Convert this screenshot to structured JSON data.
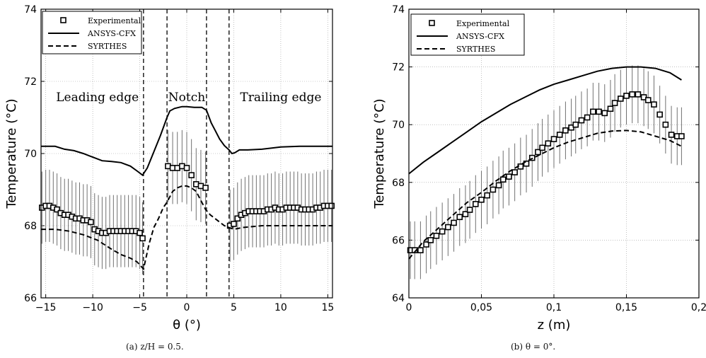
{
  "chart_data": [
    {
      "type": "line",
      "caption": "(a) z/H = 0.5.",
      "xlabel": "θ (°)",
      "ylabel": "Temperature (°C)",
      "xlim": [
        -15.5,
        15.5
      ],
      "ylim": [
        66,
        74
      ],
      "xticks": [
        -15,
        -10,
        -5,
        0,
        5,
        10,
        15
      ],
      "xtick_labels": [
        "−15",
        "−10",
        "−5",
        "0",
        "5",
        "10",
        "15"
      ],
      "yticks": [
        66,
        68,
        70,
        72,
        74
      ],
      "ytick_labels": [
        "66",
        "68",
        "70",
        "72",
        "74"
      ],
      "grid": true,
      "legend_position": "top-left",
      "legend": [
        "Experimental",
        "ANSYS-CFX",
        "SYRTHES"
      ],
      "region_labels": [
        {
          "text": "Leading edge",
          "x": -9.5,
          "y": 71.45
        },
        {
          "text": "Notch",
          "x": 0,
          "y": 71.45
        },
        {
          "text": "Trailing edge",
          "x": 10.0,
          "y": 71.45
        }
      ],
      "vertical_dashed_lines": [
        -4.6,
        -2.1,
        2.1,
        4.5
      ],
      "series": [
        {
          "name": "Experimental",
          "style": "square-markers-with-errorbars",
          "segments": [
            {
              "x": [
                -15.4,
                -15,
                -14.6,
                -14.2,
                -13.8,
                -13.4,
                -13,
                -12.6,
                -12.2,
                -11.8,
                -11.4,
                -11,
                -10.6,
                -10.2,
                -9.8,
                -9.4,
                -9,
                -8.6,
                -8.2,
                -7.8,
                -7.4,
                -7,
                -6.6,
                -6.2,
                -5.8,
                -5.4,
                -5,
                -4.7
              ],
              "y": [
                68.5,
                68.55,
                68.55,
                68.5,
                68.45,
                68.35,
                68.3,
                68.3,
                68.25,
                68.2,
                68.2,
                68.15,
                68.15,
                68.1,
                67.9,
                67.85,
                67.8,
                67.8,
                67.85,
                67.85,
                67.85,
                67.85,
                67.85,
                67.85,
                67.85,
                67.85,
                67.8,
                67.65
              ],
              "err": 1.0
            },
            {
              "x": [
                -2,
                -1.5,
                -1,
                -0.5,
                0,
                0.5,
                1,
                1.5,
                2
              ],
              "y": [
                69.65,
                69.6,
                69.6,
                69.65,
                69.6,
                69.4,
                69.15,
                69.1,
                69.05
              ],
              "err": 1.0
            },
            {
              "x": [
                4.6,
                5,
                5.4,
                5.8,
                6.2,
                6.6,
                7,
                7.4,
                7.8,
                8.2,
                8.6,
                9,
                9.4,
                9.8,
                10.2,
                10.6,
                11,
                11.4,
                11.8,
                12.2,
                12.6,
                13,
                13.4,
                13.8,
                14.2,
                14.6,
                15,
                15.4
              ],
              "y": [
                68.0,
                68.05,
                68.2,
                68.3,
                68.35,
                68.4,
                68.4,
                68.4,
                68.4,
                68.4,
                68.45,
                68.45,
                68.5,
                68.45,
                68.45,
                68.5,
                68.5,
                68.5,
                68.5,
                68.45,
                68.45,
                68.45,
                68.45,
                68.5,
                68.5,
                68.55,
                68.55,
                68.55
              ],
              "err": 1.0
            }
          ]
        },
        {
          "name": "ANSYS-CFX",
          "style": "solid",
          "x": [
            -15.5,
            -14,
            -13,
            -12,
            -11,
            -10,
            -9,
            -8,
            -7,
            -6,
            -5.2,
            -4.7,
            -4.2,
            -3.5,
            -2.8,
            -2.1,
            -1.8,
            -1.3,
            -0.5,
            0,
            0.8,
            1.6,
            2.1,
            2.6,
            3,
            3.5,
            4,
            4.5,
            4.8,
            5.1,
            5.6,
            6.5,
            8,
            10,
            12,
            14,
            15.5
          ],
          "y": [
            70.2,
            70.2,
            70.12,
            70.08,
            70.0,
            69.9,
            69.8,
            69.78,
            69.75,
            69.65,
            69.5,
            69.4,
            69.6,
            70.05,
            70.5,
            71.0,
            71.18,
            71.25,
            71.3,
            71.3,
            71.28,
            71.28,
            71.2,
            70.85,
            70.65,
            70.4,
            70.22,
            70.1,
            70.0,
            70.02,
            70.1,
            70.1,
            70.12,
            70.18,
            70.2,
            70.2,
            70.2
          ]
        },
        {
          "name": "SYRTHES",
          "style": "dashed",
          "x": [
            -15.5,
            -14,
            -12.5,
            -11,
            -9.5,
            -8,
            -7,
            -6,
            -5.3,
            -4.6,
            -4,
            -3.5,
            -3,
            -2.5,
            -2.1,
            -1.5,
            -1,
            -0.5,
            0,
            0.5,
            1,
            1.5,
            2,
            2.5,
            3,
            3.5,
            4,
            4.5,
            5,
            6,
            8,
            10,
            12,
            14,
            15.5
          ],
          "y": [
            67.9,
            67.9,
            67.85,
            67.75,
            67.6,
            67.35,
            67.2,
            67.1,
            67.0,
            66.8,
            67.5,
            67.95,
            68.2,
            68.5,
            68.65,
            68.95,
            69.05,
            69.1,
            69.1,
            69.05,
            68.95,
            68.7,
            68.45,
            68.3,
            68.2,
            68.1,
            68.0,
            67.95,
            67.9,
            67.95,
            68.0,
            68.0,
            68.0,
            68.0,
            68.0
          ]
        }
      ]
    },
    {
      "type": "line",
      "caption": "(b) θ = 0°.",
      "xlabel": "z (m)",
      "ylabel": "Temperature (°C)",
      "xlim": [
        0,
        0.2
      ],
      "ylim": [
        64,
        74
      ],
      "xticks": [
        0,
        0.05,
        0.1,
        0.15,
        0.2
      ],
      "xtick_labels": [
        "0",
        "0,05",
        "0,1",
        "0,15",
        "0,2"
      ],
      "yticks": [
        64,
        66,
        68,
        70,
        72,
        74
      ],
      "ytick_labels": [
        "64",
        "66",
        "68",
        "70",
        "72",
        "74"
      ],
      "grid": true,
      "legend_position": "top-left",
      "legend": [
        "Experimental",
        "ANSYS-CFX",
        "SYRTHES"
      ],
      "series": [
        {
          "name": "Experimental",
          "style": "square-markers-with-errorbars",
          "x": [
            0.001,
            0.004,
            0.008,
            0.012,
            0.015,
            0.019,
            0.023,
            0.027,
            0.031,
            0.035,
            0.039,
            0.042,
            0.046,
            0.05,
            0.054,
            0.058,
            0.062,
            0.065,
            0.069,
            0.073,
            0.077,
            0.081,
            0.085,
            0.089,
            0.092,
            0.096,
            0.1,
            0.104,
            0.108,
            0.112,
            0.115,
            0.119,
            0.123,
            0.127,
            0.131,
            0.135,
            0.139,
            0.142,
            0.146,
            0.15,
            0.154,
            0.158,
            0.162,
            0.165,
            0.169,
            0.173,
            0.177,
            0.181,
            0.185,
            0.188
          ],
          "y": [
            65.65,
            65.65,
            65.65,
            65.85,
            66.0,
            66.15,
            66.3,
            66.45,
            66.6,
            66.8,
            66.9,
            67.05,
            67.25,
            67.4,
            67.55,
            67.75,
            67.9,
            68.1,
            68.2,
            68.35,
            68.55,
            68.65,
            68.85,
            69.05,
            69.2,
            69.35,
            69.5,
            69.65,
            69.8,
            69.9,
            70.0,
            70.15,
            70.25,
            70.45,
            70.45,
            70.4,
            70.55,
            70.75,
            70.9,
            71.0,
            71.05,
            71.05,
            70.95,
            70.85,
            70.7,
            70.35,
            70.0,
            69.65,
            69.6,
            69.6
          ],
          "err": 1.0
        },
        {
          "name": "ANSYS-CFX",
          "style": "solid",
          "x": [
            0,
            0.01,
            0.02,
            0.03,
            0.04,
            0.05,
            0.06,
            0.07,
            0.08,
            0.09,
            0.1,
            0.11,
            0.12,
            0.13,
            0.14,
            0.15,
            0.16,
            0.17,
            0.18,
            0.188
          ],
          "y": [
            68.3,
            68.7,
            69.05,
            69.4,
            69.75,
            70.1,
            70.4,
            70.7,
            70.95,
            71.2,
            71.4,
            71.55,
            71.7,
            71.85,
            71.95,
            72.0,
            72.0,
            71.95,
            71.8,
            71.55
          ]
        },
        {
          "name": "SYRTHES",
          "style": "dashed",
          "x": [
            0,
            0.01,
            0.02,
            0.03,
            0.04,
            0.05,
            0.06,
            0.07,
            0.08,
            0.09,
            0.1,
            0.11,
            0.12,
            0.13,
            0.14,
            0.15,
            0.16,
            0.17,
            0.18,
            0.188
          ],
          "y": [
            65.35,
            65.95,
            66.4,
            66.85,
            67.3,
            67.65,
            68.05,
            68.4,
            68.7,
            68.95,
            69.2,
            69.4,
            69.55,
            69.7,
            69.78,
            69.8,
            69.75,
            69.6,
            69.45,
            69.25
          ]
        }
      ]
    }
  ]
}
